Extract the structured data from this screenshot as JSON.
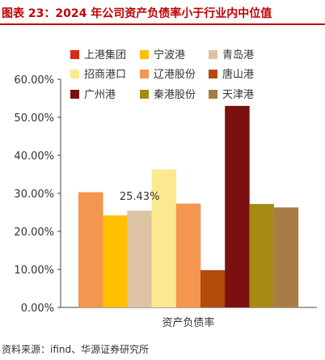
{
  "page": {
    "title": "图表 23：2024 年公司资产负债率小于行业内中位值",
    "source": "资料来源：ifind、华源证券研究所"
  },
  "chart_data": {
    "type": "bar",
    "categories": [
      "资产负债率"
    ],
    "series": [
      {
        "name": "上港集团",
        "values": [
          30.3
        ],
        "color": "#f4964f"
      },
      {
        "name": "宁波港",
        "values": [
          24.2
        ],
        "color": "#ffc000"
      },
      {
        "name": "青岛港",
        "values": [
          25.43
        ],
        "color": "#dcc3a4"
      },
      {
        "name": "招商港口",
        "values": [
          36.3
        ],
        "color": "#fbe98f"
      },
      {
        "name": "辽港股份",
        "values": [
          27.3
        ],
        "color": "#f4964f"
      },
      {
        "name": "唐山港",
        "values": [
          9.8
        ],
        "color": "#b44a0c"
      },
      {
        "name": "广州港",
        "values": [
          53.0
        ],
        "color": "#7b1010"
      },
      {
        "name": "秦港股份",
        "values": [
          27.2
        ],
        "color": "#a58b14"
      },
      {
        "name": "天津港",
        "values": [
          26.3
        ],
        "color": "#a87c44"
      }
    ],
    "legend_colors": [
      "#d62c13",
      "#ffc000",
      "#dcc3a4",
      "#fbe98f",
      "#f4964f",
      "#b44a0c",
      "#7b1010",
      "#a58b14",
      "#a87c44"
    ],
    "annotation": {
      "text": "25.43%",
      "series_index": 2
    },
    "ylim": [
      0,
      60
    ],
    "yticks": [
      0,
      10,
      20,
      30,
      40,
      50,
      60
    ],
    "ytick_labels": [
      "0.00%",
      "10.00%",
      "20.00%",
      "30.00%",
      "40.00%",
      "50.00%",
      "60.00%"
    ],
    "grid": false,
    "legend_position": "top"
  }
}
